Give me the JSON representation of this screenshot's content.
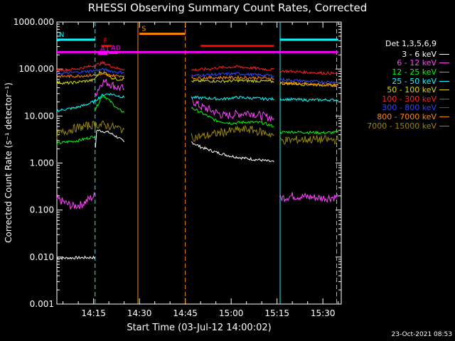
{
  "chart_data": {
    "type": "line",
    "title": "RHESSI Observing Summary Count Rates, Corrected",
    "xlabel": "Start Time (03-Jul-12 14:00:02)",
    "ylabel": "Corrected Count Rate (s⁻¹ detector⁻¹)",
    "yscale": "log",
    "ylim": [
      0.001,
      1000
    ],
    "xlim_minutes": [
      3,
      42
    ],
    "x_ticks": [
      {
        "label": "14:15",
        "minutes": 15
      },
      {
        "label": "14:30",
        "minutes": 30
      },
      {
        "label": "14:45",
        "minutes": 45
      },
      {
        "label": "15:00",
        "minutes": 60
      },
      {
        "label": "15:15",
        "minutes": 75
      },
      {
        "label": "15:30",
        "minutes": 90
      }
    ],
    "y_ticks": [
      "0.001",
      "0.010",
      "0.100",
      "1.000",
      "10.000",
      "100.000",
      "1000.000"
    ],
    "y_tick_values": [
      0.001,
      0.01,
      0.1,
      1,
      10,
      100,
      1000
    ],
    "legend_title": "Det 1,3,5,6,9",
    "legend_position": "right",
    "series": [
      {
        "name": "3 - 6 keV",
        "color": "#ffffff",
        "segments": [
          [
            [
              3,
              0.0095
            ],
            [
              15.5,
              0.0098
            ]
          ],
          [
            [
              15.6,
              2.0
            ],
            [
              16,
              5.0
            ],
            [
              20,
              4.5
            ],
            [
              23,
              3.5
            ],
            [
              25,
              2.8
            ]
          ],
          [
            [
              47,
              2.8
            ],
            [
              50,
              2.2
            ],
            [
              55,
              1.7
            ],
            [
              60,
              1.4
            ],
            [
              65,
              1.25
            ],
            [
              70,
              1.15
            ],
            [
              74,
              1.05
            ]
          ]
        ]
      },
      {
        "name": "6 - 12 keV",
        "color": "#ff44ff",
        "segments": [
          [
            [
              3,
              0.17
            ],
            [
              5,
              0.15
            ],
            [
              8,
              0.12
            ],
            [
              11,
              0.13
            ],
            [
              14,
              0.18
            ],
            [
              15.5,
              0.2
            ]
          ],
          [
            [
              15.6,
              30
            ],
            [
              18,
              55
            ],
            [
              20,
              50
            ],
            [
              23,
              40
            ],
            [
              25,
              38
            ]
          ],
          [
            [
              47,
              22
            ],
            [
              50,
              16
            ],
            [
              55,
              12
            ],
            [
              58,
              10
            ],
            [
              62,
              11
            ],
            [
              66,
              12
            ],
            [
              70,
              10
            ],
            [
              74,
              9
            ]
          ],
          [
            [
              76,
              0.18
            ],
            [
              80,
              0.2
            ],
            [
              85,
              0.19
            ],
            [
              90,
              0.18
            ],
            [
              95,
              0.19
            ]
          ]
        ]
      },
      {
        "name": "12 - 25 keV",
        "color": "#00ff00",
        "segments": [
          [
            [
              3,
              2.6
            ],
            [
              6,
              2.8
            ],
            [
              10,
              3.0
            ],
            [
              14,
              3.5
            ],
            [
              15.5,
              3.8
            ]
          ],
          [
            [
              15.6,
              14
            ],
            [
              18,
              28
            ],
            [
              20,
              22
            ],
            [
              23,
              14
            ],
            [
              25,
              12
            ]
          ],
          [
            [
              47,
              15
            ],
            [
              50,
              12
            ],
            [
              55,
              8
            ],
            [
              60,
              7
            ],
            [
              65,
              7.5
            ],
            [
              70,
              7.2
            ],
            [
              74,
              6
            ]
          ],
          [
            [
              76,
              4.5
            ],
            [
              80,
              4.6
            ],
            [
              85,
              4.5
            ],
            [
              90,
              4.4
            ],
            [
              95,
              4.5
            ]
          ]
        ]
      },
      {
        "name": "25 - 50 keV",
        "color": "#00ffff",
        "segments": [
          [
            [
              3,
              13
            ],
            [
              6,
              14
            ],
            [
              9,
              15
            ],
            [
              12,
              17
            ],
            [
              15,
              20
            ],
            [
              18,
              28
            ],
            [
              20,
              30
            ],
            [
              23,
              27
            ],
            [
              25,
              25
            ]
          ],
          [
            [
              47,
              25
            ],
            [
              52,
              24
            ],
            [
              57,
              23
            ],
            [
              62,
              25
            ],
            [
              67,
              24
            ],
            [
              72,
              23
            ],
            [
              74,
              23
            ]
          ],
          [
            [
              76,
              23
            ],
            [
              85,
              22
            ],
            [
              95,
              22
            ]
          ]
        ]
      },
      {
        "name": "50 - 100 keV",
        "color": "#dddd00",
        "segments": [
          [
            [
              3,
              52
            ],
            [
              6,
              50
            ],
            [
              9,
              52
            ],
            [
              12,
              55
            ],
            [
              15,
              58
            ],
            [
              17,
              85
            ],
            [
              19,
              82
            ],
            [
              21,
              65
            ],
            [
              23,
              60
            ],
            [
              25,
              62
            ]
          ],
          [
            [
              47,
              55
            ],
            [
              52,
              56
            ],
            [
              57,
              55
            ],
            [
              62,
              57
            ],
            [
              67,
              56
            ],
            [
              72,
              55
            ],
            [
              74,
              54
            ]
          ],
          [
            [
              76,
              50
            ],
            [
              85,
              47
            ],
            [
              95,
              45
            ]
          ]
        ]
      },
      {
        "name": "100 - 300 keV",
        "color": "#ff2222",
        "segments": [
          [
            [
              3,
              95
            ],
            [
              6,
              96
            ],
            [
              9,
              100
            ],
            [
              12,
              108
            ],
            [
              15,
              118
            ],
            [
              18,
              135
            ],
            [
              21,
              115
            ],
            [
              23,
              102
            ],
            [
              25,
              100
            ]
          ],
          [
            [
              47,
              95
            ],
            [
              52,
              100
            ],
            [
              57,
              108
            ],
            [
              62,
              112
            ],
            [
              67,
              105
            ],
            [
              72,
              98
            ],
            [
              74,
              97
            ]
          ],
          [
            [
              76,
              92
            ],
            [
              85,
              85
            ],
            [
              95,
              80
            ]
          ]
        ]
      },
      {
        "name": "300 - 800 keV",
        "color": "#3344ff",
        "segments": [
          [
            [
              3,
              80
            ],
            [
              6,
              82
            ],
            [
              9,
              85
            ],
            [
              12,
              88
            ],
            [
              15,
              92
            ],
            [
              18,
              98
            ],
            [
              21,
              90
            ],
            [
              23,
              85
            ],
            [
              25,
              86
            ]
          ],
          [
            [
              47,
              72
            ],
            [
              52,
              75
            ],
            [
              57,
              78
            ],
            [
              62,
              80
            ],
            [
              67,
              76
            ],
            [
              72,
              73
            ],
            [
              74,
              72
            ]
          ],
          [
            [
              76,
              60
            ],
            [
              85,
              55
            ],
            [
              95,
              52
            ]
          ]
        ]
      },
      {
        "name": "800 - 7000 keV",
        "color": "#ff8800",
        "segments": [
          [
            [
              3,
              70
            ],
            [
              6,
              70
            ],
            [
              9,
              71
            ],
            [
              12,
              72
            ],
            [
              15,
              74
            ],
            [
              18,
              76
            ],
            [
              21,
              73
            ],
            [
              23,
              72
            ],
            [
              25,
              72
            ]
          ],
          [
            [
              47,
              64
            ],
            [
              52,
              65
            ],
            [
              57,
              66
            ],
            [
              62,
              66
            ],
            [
              67,
              65
            ],
            [
              72,
              64
            ],
            [
              74,
              63
            ]
          ],
          [
            [
              76,
              52
            ],
            [
              85,
              48
            ],
            [
              95,
              45
            ]
          ]
        ]
      },
      {
        "name": "7000 - 15000 keV",
        "color": "#998800",
        "segments": [
          [
            [
              3,
              4.0
            ],
            [
              6,
              4.8
            ],
            [
              9,
              5.5
            ],
            [
              12,
              6.0
            ],
            [
              15,
              6.5
            ],
            [
              18,
              6.5
            ],
            [
              21,
              6.0
            ],
            [
              23,
              5.5
            ],
            [
              25,
              5.2
            ]
          ],
          [
            [
              47,
              3.5
            ],
            [
              52,
              3.8
            ],
            [
              57,
              4.5
            ],
            [
              62,
              5.0
            ],
            [
              66,
              5.2
            ],
            [
              70,
              4.5
            ],
            [
              74,
              4.0
            ]
          ],
          [
            [
              76,
              3.0
            ],
            [
              85,
              3.2
            ],
            [
              95,
              3.1
            ]
          ]
        ]
      }
    ],
    "vertical_lines": [
      {
        "minutes": 15.5,
        "color": "#00ffff",
        "style": "dashed"
      },
      {
        "minutes": 29.5,
        "color": "#ff8800",
        "style": "solid"
      },
      {
        "minutes": 45,
        "color": "#ff8800",
        "style": "dashed"
      },
      {
        "minutes": 76,
        "color": "#00ffff",
        "style": "solid"
      },
      {
        "minutes": 94.5,
        "color": "#00ffff",
        "style": "dashed"
      }
    ],
    "flag_bars": [
      {
        "label": "N",
        "color": "#00ffff",
        "segments": [
          [
            [
              3,
              15.5
            ],
            420
          ],
          [
            [
              76,
              95
            ],
            420
          ]
        ]
      },
      {
        "label": "S",
        "color": "#ff8800",
        "segments": [
          [
            [
              30,
              45
            ],
            560
          ]
        ]
      },
      {
        "label": "F",
        "color": "#ff0000",
        "segments": [
          [
            [
              17.5,
              21
            ],
            310
          ],
          [
            [
              50,
              74
            ],
            310
          ]
        ]
      },
      {
        "label": "A0",
        "color": "#ff00ff",
        "segments": [
          [
            [
              20,
              23
            ],
            220
          ]
        ]
      },
      {
        "label": "A1",
        "color": "#ff00ff",
        "segments": [
          [
            [
              16.5,
              19.5
            ],
            210
          ]
        ]
      },
      {
        "label": "",
        "color": "#ff00ff",
        "segments": [
          [
            [
              3,
              95
            ],
            230
          ]
        ]
      }
    ]
  },
  "timestamp": "23-Oct-2021 08:53"
}
